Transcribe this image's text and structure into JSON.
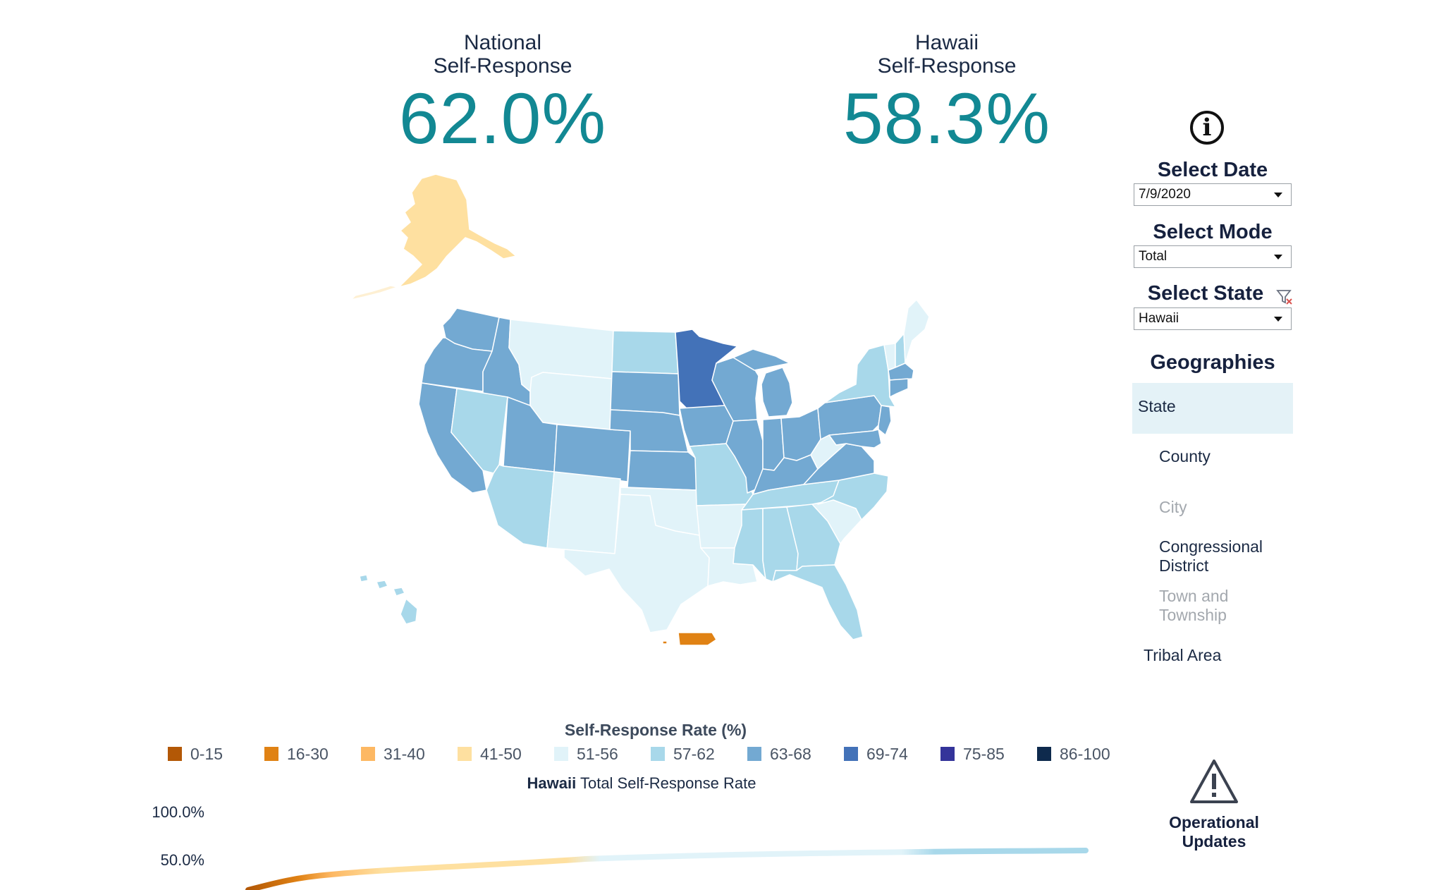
{
  "kpis": {
    "national": {
      "label_line1": "National",
      "label_line2": "Self-Response",
      "value": "62.0%"
    },
    "state": {
      "label_line1": "Hawaii",
      "label_line2": "Self-Response",
      "value": "58.3%"
    }
  },
  "sidebar": {
    "info_icon": "info-icon",
    "select_date": {
      "title": "Select Date",
      "value": "7/9/2020"
    },
    "select_mode": {
      "title": "Select Mode",
      "value": "Total"
    },
    "select_state": {
      "title": "Select State",
      "value": "Hawaii",
      "filter_icon": "clear-filter-icon"
    },
    "geographies": {
      "title": "Geographies",
      "items": [
        "State",
        "County",
        "City",
        "Congressional District",
        "Town and Township",
        "Tribal Area"
      ],
      "selected": "State"
    }
  },
  "legend": {
    "title": "Self-Response Rate (%)",
    "items": [
      {
        "label": "0-15",
        "color": "#b35806"
      },
      {
        "label": "16-30",
        "color": "#e08214"
      },
      {
        "label": "31-40",
        "color": "#fdb863"
      },
      {
        "label": "41-50",
        "color": "#fee0a0"
      },
      {
        "label": "51-56",
        "color": "#e1f3f9"
      },
      {
        "label": "57-62",
        "color": "#a8d8ea"
      },
      {
        "label": "63-68",
        "color": "#73a9d2"
      },
      {
        "label": "69-74",
        "color": "#4372b8"
      },
      {
        "label": "75-85",
        "color": "#34349a"
      },
      {
        "label": "86-100",
        "color": "#0e2a4d"
      }
    ]
  },
  "trend": {
    "title_state": "Hawaii",
    "title_rest": "Total Self-Response Rate",
    "y_ticks": [
      "100.0%",
      "50.0%"
    ]
  },
  "operational_updates": {
    "line1": "Operational",
    "line2": "Updates",
    "icon": "warning-icon"
  }
}
